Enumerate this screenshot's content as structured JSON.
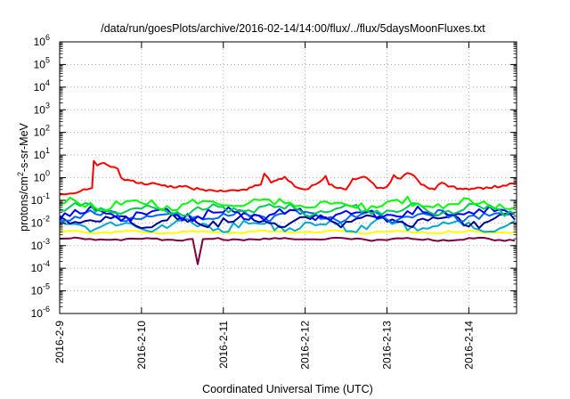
{
  "chart_data": {
    "type": "line",
    "title": "/data/run/goesPlots/archive/2016-02-14/14:00/flux/../flux/5daysMoonFluxes.txt",
    "xlabel": "Coordinated Universal Time (UTC)",
    "ylabel": "protons/cm²-s-sr-MeV",
    "x_ticks": [
      "2016-2-9",
      "2016-2-10",
      "2016-2-11",
      "2016-2-12",
      "2016-2-13",
      "2016-2-14"
    ],
    "xlim": [
      "2016-02-09",
      "2016-02-14T14:00"
    ],
    "y_scale": "log",
    "ylim": [
      1e-06,
      1000000.0
    ],
    "y_ticks": [
      -6,
      -5,
      -4,
      -3,
      -2,
      -1,
      0,
      1,
      2,
      3,
      4,
      5,
      6
    ],
    "grid": true,
    "series": [
      {
        "color": "#ff0000",
        "points": [
          [
            "2016-02-09T00:00",
            0.18
          ],
          [
            "2016-02-09T03:00",
            0.2
          ],
          [
            "2016-02-09T06:00",
            0.25
          ],
          [
            "2016-02-09T08:00",
            0.3
          ],
          [
            "2016-02-09T09:30",
            0.35
          ],
          [
            "2016-02-09T10:00",
            5.5
          ],
          [
            "2016-02-09T11:00",
            3.5
          ],
          [
            "2016-02-09T13:00",
            4.5
          ],
          [
            "2016-02-09T15:00",
            3.0
          ],
          [
            "2016-02-09T17:00",
            2.5
          ],
          [
            "2016-02-09T18:00",
            1.0
          ],
          [
            "2016-02-09T20:00",
            0.8
          ],
          [
            "2016-02-10T00:00",
            0.6
          ],
          [
            "2016-02-10T06:00",
            0.45
          ],
          [
            "2016-02-10T12:00",
            0.4
          ],
          [
            "2016-02-10T18:00",
            0.3
          ],
          [
            "2016-02-11T00:00",
            0.25
          ],
          [
            "2016-02-11T06:00",
            0.3
          ],
          [
            "2016-02-11T11:00",
            0.5
          ],
          [
            "2016-02-11T12:00",
            1.5
          ],
          [
            "2016-02-11T14:00",
            0.6
          ],
          [
            "2016-02-11T18:00",
            1.1
          ],
          [
            "2016-02-11T21:00",
            0.4
          ],
          [
            "2016-02-12T00:00",
            0.3
          ],
          [
            "2016-02-12T03:00",
            0.5
          ],
          [
            "2016-02-12T06:00",
            1.2
          ],
          [
            "2016-02-12T07:00",
            0.5
          ],
          [
            "2016-02-12T12:00",
            0.3
          ],
          [
            "2016-02-12T14:00",
            0.9
          ],
          [
            "2016-02-12T18:00",
            1.0
          ],
          [
            "2016-02-12T21:00",
            0.35
          ],
          [
            "2016-02-13T00:00",
            0.4
          ],
          [
            "2016-02-13T02:00",
            1.3
          ],
          [
            "2016-02-13T04:00",
            0.9
          ],
          [
            "2016-02-13T06:00",
            1.6
          ],
          [
            "2016-02-13T08:00",
            1.2
          ],
          [
            "2016-02-13T10:00",
            0.5
          ],
          [
            "2016-02-13T14:00",
            0.3
          ],
          [
            "2016-02-13T16:00",
            0.6
          ],
          [
            "2016-02-13T18:00",
            0.4
          ],
          [
            "2016-02-14T00:00",
            0.3
          ],
          [
            "2016-02-14T06:00",
            0.35
          ],
          [
            "2016-02-14T10:00",
            0.45
          ],
          [
            "2016-02-14T12:00",
            0.55
          ],
          [
            "2016-02-14T14:00",
            0.6
          ]
        ]
      },
      {
        "color": "#00ff00",
        "approx_level": 0.07
      },
      {
        "color": "#00cc55",
        "approx_level": 0.04
      },
      {
        "color": "#0000ff",
        "approx_level": 0.025
      },
      {
        "color": "#0066ff",
        "approx_level": 0.02
      },
      {
        "color": "#000099",
        "approx_level": 0.013
      },
      {
        "color": "#00aacc",
        "approx_level": 0.008
      },
      {
        "color": "#ffff00",
        "approx_level": 0.004
      },
      {
        "color": "#800040",
        "approx_level": 0.0019,
        "notable_points": [
          [
            "2016-02-10T16:00",
            0.00015
          ]
        ]
      }
    ]
  }
}
